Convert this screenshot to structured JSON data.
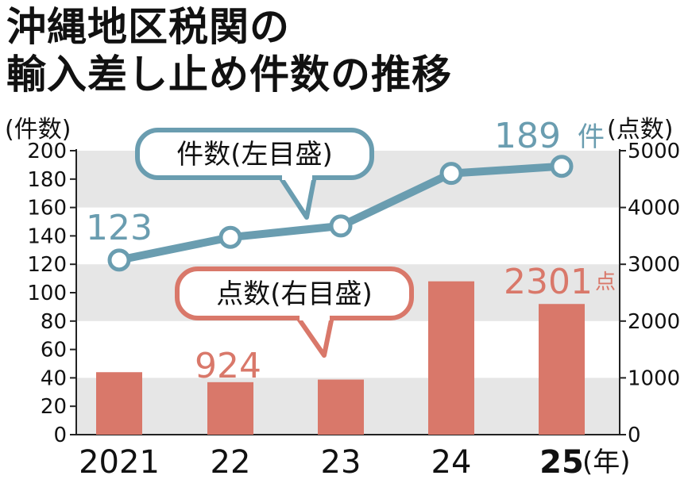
{
  "title_line1": "沖縄地区税関の",
  "title_line2": "輸入差し止め件数の推移",
  "chart_data": {
    "type": "bar+line",
    "categories": [
      "2021",
      "22",
      "23",
      "24",
      "25"
    ],
    "x_unit": "(年)",
    "series": [
      {
        "name": "件数(左目盛)",
        "type": "line",
        "axis": "left",
        "unit_label": "(件数)",
        "values": [
          123,
          139,
          147,
          184,
          189
        ],
        "labels": [
          {
            "index": 0,
            "text": "123"
          },
          {
            "index": 4,
            "text": "189",
            "suffix": "件"
          }
        ],
        "color": "#6a9db0"
      },
      {
        "name": "点数(右目盛)",
        "type": "bar",
        "axis": "right",
        "unit_label": "(点数)",
        "values": [
          1100,
          924,
          970,
          2700,
          2301
        ],
        "labels": [
          {
            "index": 1,
            "text": "924"
          },
          {
            "index": 4,
            "text": "2301",
            "suffix": "点"
          }
        ],
        "color": "#d9786a"
      }
    ],
    "left_axis": {
      "min": 0,
      "max": 200,
      "ticks": [
        "0",
        "20",
        "40",
        "60",
        "80",
        "100",
        "120",
        "140",
        "160",
        "180",
        "200"
      ]
    },
    "right_axis": {
      "min": 0,
      "max": 5000,
      "ticks": [
        "0",
        "1000",
        "2000",
        "3000",
        "4000",
        "5000"
      ]
    },
    "bands": "alternating gray bands"
  }
}
